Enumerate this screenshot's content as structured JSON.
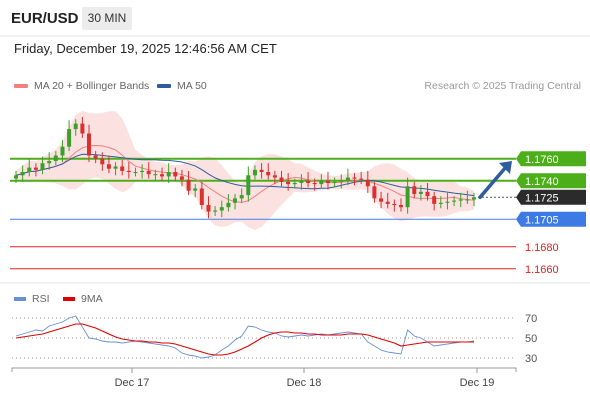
{
  "header": {
    "symbol": "EUR/USD",
    "timeframe": "30 MIN",
    "datetime": "Friday, December 19, 2025 12:46:56 AM CET"
  },
  "legend": {
    "items": [
      {
        "label": "MA 20 + Bollinger Bands",
        "color": "#f08080"
      },
      {
        "label": "MA 50",
        "color": "#2e5c9e"
      }
    ],
    "credit": "Research © 2025 Trading Central"
  },
  "rsi_legend": {
    "items": [
      {
        "label": "RSI",
        "color": "#6a8fd6"
      },
      {
        "label": "9MA",
        "color": "#e00000"
      }
    ]
  },
  "chart_data": [
    {
      "type": "candlestick",
      "title": "",
      "ylim": [
        1.1648,
        1.1818
      ],
      "x_ticks": [
        "Dec 17",
        "Dec 18",
        "Dec 19"
      ],
      "levels": [
        {
          "value": 1.176,
          "label": "1.1760",
          "color": "#4caf1a",
          "style": "resistance"
        },
        {
          "value": 1.174,
          "label": "1.1740",
          "color": "#4caf1a",
          "style": "resistance"
        },
        {
          "value": 1.1725,
          "label": "1.1725",
          "color": "#333333",
          "style": "current"
        },
        {
          "value": 1.1705,
          "label": "1.1705",
          "color": "#4a7ee8",
          "style": "pivot"
        },
        {
          "value": 1.168,
          "label": "1.1680",
          "color": "#e02020",
          "style": "support"
        },
        {
          "value": 1.166,
          "label": "1.1660",
          "color": "#e02020",
          "style": "support"
        }
      ],
      "close_series": [
        1.1745,
        1.1748,
        1.1752,
        1.175,
        1.1756,
        1.1758,
        1.1763,
        1.1771,
        1.1787,
        1.1792,
        1.1783,
        1.1763,
        1.176,
        1.1755,
        1.1751,
        1.1753,
        1.1749,
        1.1748,
        1.1748,
        1.1749,
        1.1746,
        1.1746,
        1.1744,
        1.1748,
        1.1744,
        1.1741,
        1.1731,
        1.1733,
        1.1718,
        1.1712,
        1.1713,
        1.1716,
        1.172,
        1.1724,
        1.1727,
        1.1745,
        1.175,
        1.1748,
        1.1745,
        1.1743,
        1.1739,
        1.1737,
        1.1738,
        1.174,
        1.1738,
        1.1737,
        1.174,
        1.1738,
        1.1739,
        1.174,
        1.1743,
        1.1742,
        1.1741,
        1.1735,
        1.1724,
        1.1721,
        1.1719,
        1.1718,
        1.1716,
        1.1735,
        1.1728,
        1.173,
        1.1726,
        1.1719,
        1.172,
        1.1721,
        1.1722,
        1.1723,
        1.1723,
        1.1725
      ],
      "arrow": {
        "from": 1.1725,
        "to": 1.1758,
        "direction": "up"
      }
    },
    {
      "type": "line",
      "title": "",
      "ylim": [
        20,
        80
      ],
      "yticks": [
        70,
        50,
        30
      ],
      "series": [
        {
          "name": "RSI",
          "values": [
            52,
            54,
            56,
            58,
            57,
            62,
            64,
            66,
            70,
            72,
            61,
            50,
            49,
            47,
            46,
            46,
            45,
            46,
            47,
            46,
            45,
            44,
            43,
            42,
            40,
            35,
            33,
            32,
            30,
            31,
            33,
            38,
            42,
            48,
            52,
            62,
            61,
            58,
            56,
            55,
            52,
            51,
            52,
            53,
            52,
            53,
            54,
            53,
            54,
            55,
            56,
            55,
            54,
            46,
            42,
            38,
            36,
            35,
            34,
            58,
            52,
            50,
            46,
            42,
            43,
            44,
            45,
            46,
            46,
            47
          ]
        },
        {
          "name": "9MA",
          "values": [
            50,
            51,
            52,
            53,
            54,
            56,
            58,
            60,
            62,
            64,
            64,
            62,
            60,
            57,
            54,
            51,
            49,
            48,
            47,
            47,
            46,
            46,
            45,
            45,
            44,
            42,
            40,
            38,
            36,
            34,
            33,
            33,
            34,
            36,
            39,
            42,
            46,
            50,
            53,
            55,
            56,
            56,
            55,
            55,
            54,
            54,
            53,
            53,
            53,
            53,
            54,
            54,
            54,
            53,
            51,
            49,
            47,
            45,
            42,
            43,
            44,
            45,
            46,
            46,
            46,
            46,
            46,
            46,
            46,
            46
          ]
        }
      ]
    }
  ]
}
